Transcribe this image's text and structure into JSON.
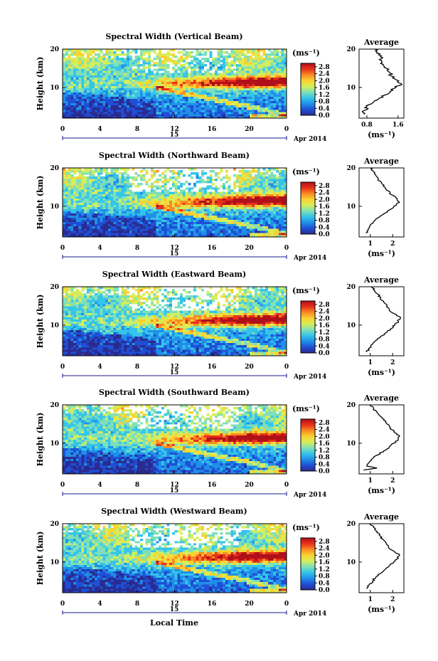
{
  "chart_data": {
    "type": "heatmap",
    "shared": {
      "ylabel": "Height (km)",
      "x_ticks": [
        "0",
        "4",
        "8",
        "12",
        "16",
        "20",
        "0"
      ],
      "date_day": "15",
      "date_month_year": "Apr 2014",
      "xlabel_bottom": "Local Time",
      "xlim": [
        0,
        24
      ],
      "ylim": [
        2,
        20
      ],
      "y_ticks": [
        "10",
        "20"
      ],
      "colorbar_unit": "(ms⁻¹)",
      "colorbar_ticks": [
        "0.0",
        "0.4",
        "0.8",
        "1.2",
        "1.6",
        "2.0",
        "2.4",
        "2.8"
      ],
      "colorbar_range": [
        0.0,
        3.0
      ],
      "profile_title": "Average",
      "profile_xlabel": "(ms⁻¹)",
      "colormap": [
        "#2b2b8f",
        "#1f4fd6",
        "#1f8fe8",
        "#35c4ea",
        "#7fe0b8",
        "#d6ee5a",
        "#fbd230",
        "#f98a23",
        "#e8301c",
        "#b0101a"
      ]
    },
    "panels": [
      {
        "title": "Spectral Width (Vertical Beam)",
        "profile_x_ticks": [
          "0.8",
          "1.6"
        ],
        "profile_xlim": [
          0.6,
          1.75
        ],
        "profile": [
          {
            "h": 3,
            "v": 0.72
          },
          {
            "h": 4,
            "v": 0.74
          },
          {
            "h": 5,
            "v": 0.8
          },
          {
            "h": 6,
            "v": 0.95
          },
          {
            "h": 7,
            "v": 1.1
          },
          {
            "h": 8,
            "v": 1.25
          },
          {
            "h": 9,
            "v": 1.4
          },
          {
            "h": 10,
            "v": 1.55
          },
          {
            "h": 11,
            "v": 1.68
          },
          {
            "h": 12,
            "v": 1.55
          },
          {
            "h": 13,
            "v": 1.42
          },
          {
            "h": 14,
            "v": 1.38
          },
          {
            "h": 15,
            "v": 1.3
          },
          {
            "h": 16,
            "v": 1.22
          },
          {
            "h": 17,
            "v": 1.18
          },
          {
            "h": 18,
            "v": 1.15
          },
          {
            "h": 19,
            "v": 1.05
          },
          {
            "h": 20,
            "v": 1.0
          }
        ]
      },
      {
        "title": "Spectral Width (Northward Beam)",
        "profile_x_ticks": [
          "1",
          "2"
        ],
        "profile_xlim": [
          0.5,
          2.5
        ],
        "profile": [
          {
            "h": 3,
            "v": 0.8
          },
          {
            "h": 4,
            "v": 0.9
          },
          {
            "h": 5,
            "v": 1.0
          },
          {
            "h": 6,
            "v": 1.15
          },
          {
            "h": 7,
            "v": 1.35
          },
          {
            "h": 8,
            "v": 1.6
          },
          {
            "h": 9,
            "v": 1.85
          },
          {
            "h": 10,
            "v": 2.05
          },
          {
            "h": 11,
            "v": 2.3
          },
          {
            "h": 12,
            "v": 2.2
          },
          {
            "h": 13,
            "v": 1.95
          },
          {
            "h": 14,
            "v": 1.8
          },
          {
            "h": 15,
            "v": 1.65
          },
          {
            "h": 16,
            "v": 1.5
          },
          {
            "h": 17,
            "v": 1.35
          },
          {
            "h": 18,
            "v": 1.25
          },
          {
            "h": 19,
            "v": 1.15
          },
          {
            "h": 20,
            "v": 1.0
          }
        ]
      },
      {
        "title": "Spectral Width (Eastward Beam)",
        "profile_x_ticks": [
          "1",
          "2"
        ],
        "profile_xlim": [
          0.5,
          2.5
        ],
        "profile": [
          {
            "h": 3,
            "v": 0.85
          },
          {
            "h": 4,
            "v": 0.95
          },
          {
            "h": 5,
            "v": 1.1
          },
          {
            "h": 6,
            "v": 1.25
          },
          {
            "h": 7,
            "v": 1.45
          },
          {
            "h": 8,
            "v": 1.7
          },
          {
            "h": 9,
            "v": 1.9
          },
          {
            "h": 10,
            "v": 2.1
          },
          {
            "h": 11,
            "v": 2.25
          },
          {
            "h": 12,
            "v": 2.35
          },
          {
            "h": 13,
            "v": 2.05
          },
          {
            "h": 14,
            "v": 1.85
          },
          {
            "h": 15,
            "v": 1.75
          },
          {
            "h": 16,
            "v": 1.6
          },
          {
            "h": 17,
            "v": 1.45
          },
          {
            "h": 18,
            "v": 1.35
          },
          {
            "h": 19,
            "v": 1.2
          },
          {
            "h": 20,
            "v": 1.05
          }
        ]
      },
      {
        "title": "Spectral Width (Southward Beam)",
        "profile_x_ticks": [
          "1",
          "2"
        ],
        "profile_xlim": [
          0.5,
          2.5
        ],
        "profile": [
          {
            "h": 3,
            "v": 0.7
          },
          {
            "h": 3.5,
            "v": 1.3
          },
          {
            "h": 4,
            "v": 0.85
          },
          {
            "h": 5,
            "v": 0.95
          },
          {
            "h": 6,
            "v": 1.1
          },
          {
            "h": 7,
            "v": 1.35
          },
          {
            "h": 8,
            "v": 1.6
          },
          {
            "h": 9,
            "v": 1.85
          },
          {
            "h": 10,
            "v": 2.05
          },
          {
            "h": 11,
            "v": 2.25
          },
          {
            "h": 12,
            "v": 2.3
          },
          {
            "h": 13,
            "v": 2.05
          },
          {
            "h": 14,
            "v": 1.9
          },
          {
            "h": 15,
            "v": 1.75
          },
          {
            "h": 16,
            "v": 1.6
          },
          {
            "h": 17,
            "v": 1.45
          },
          {
            "h": 18,
            "v": 1.3
          },
          {
            "h": 19,
            "v": 1.15
          },
          {
            "h": 20,
            "v": 1.0
          }
        ]
      },
      {
        "title": "Spectral Width (Westward Beam)",
        "profile_x_ticks": [
          "1",
          "2"
        ],
        "profile_xlim": [
          0.5,
          2.5
        ],
        "profile": [
          {
            "h": 3,
            "v": 0.85
          },
          {
            "h": 4,
            "v": 0.95
          },
          {
            "h": 5,
            "v": 1.1
          },
          {
            "h": 6,
            "v": 1.25
          },
          {
            "h": 7,
            "v": 1.45
          },
          {
            "h": 8,
            "v": 1.65
          },
          {
            "h": 9,
            "v": 1.85
          },
          {
            "h": 10,
            "v": 2.05
          },
          {
            "h": 11,
            "v": 2.25
          },
          {
            "h": 12,
            "v": 2.3
          },
          {
            "h": 13,
            "v": 2.0
          },
          {
            "h": 14,
            "v": 1.8
          },
          {
            "h": 15,
            "v": 1.7
          },
          {
            "h": 16,
            "v": 1.55
          },
          {
            "h": 17,
            "v": 1.4
          },
          {
            "h": 18,
            "v": 1.3
          },
          {
            "h": 19,
            "v": 1.15
          },
          {
            "h": 20,
            "v": 1.0
          }
        ]
      }
    ]
  }
}
